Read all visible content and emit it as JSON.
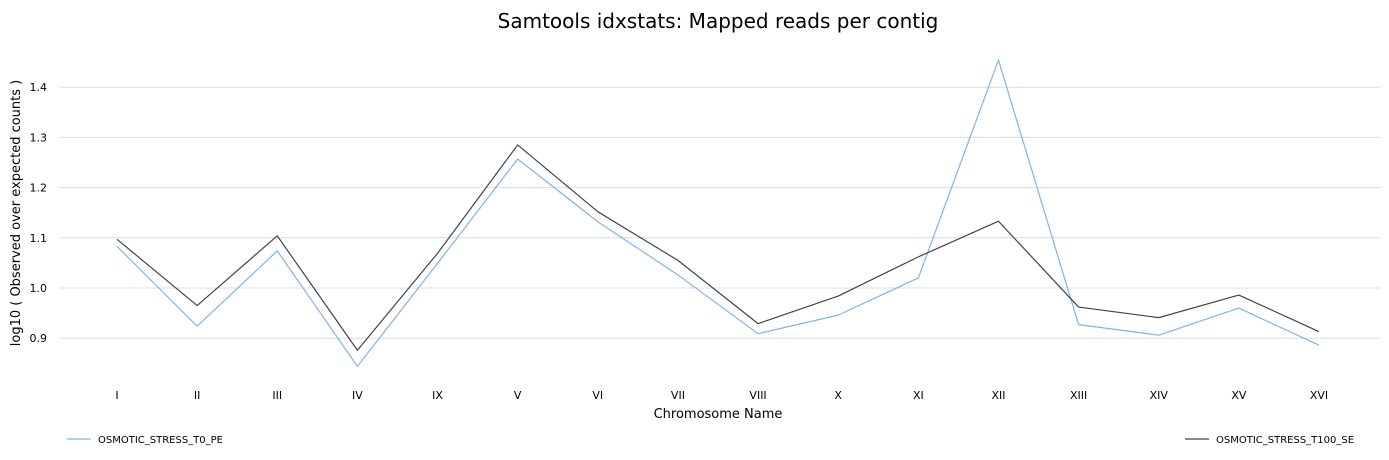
{
  "chart_data": {
    "type": "line",
    "title": "Samtools idxstats: Mapped reads per contig",
    "xlabel": "Chromosome Name",
    "ylabel": "log10 ( Observed over expected counts )",
    "categories": [
      "I",
      "II",
      "III",
      "IV",
      "IX",
      "V",
      "VI",
      "VII",
      "VIII",
      "X",
      "XI",
      "XII",
      "XIII",
      "XIV",
      "XV",
      "XVI"
    ],
    "yticks": [
      "0.9",
      "1.0",
      "1.1",
      "1.2",
      "1.3",
      "1.4"
    ],
    "ylim": [
      0.8,
      1.46
    ],
    "grid": true,
    "legend_position": "bottom",
    "series": [
      {
        "name": "OSMOTIC_STRESS_T0_PE",
        "color": "#7cb5ec",
        "values": [
          1.083,
          0.924,
          1.074,
          0.844,
          1.049,
          1.257,
          1.132,
          1.026,
          0.909,
          0.946,
          1.02,
          1.454,
          0.927,
          0.906,
          0.96,
          0.886
        ]
      },
      {
        "name": "OSMOTIC_STRESS_T100_SE",
        "color": "#434348",
        "values": [
          1.097,
          0.965,
          1.104,
          0.876,
          1.069,
          1.285,
          1.152,
          1.055,
          0.929,
          0.984,
          1.062,
          1.133,
          0.962,
          0.941,
          0.986,
          0.913
        ]
      }
    ]
  }
}
